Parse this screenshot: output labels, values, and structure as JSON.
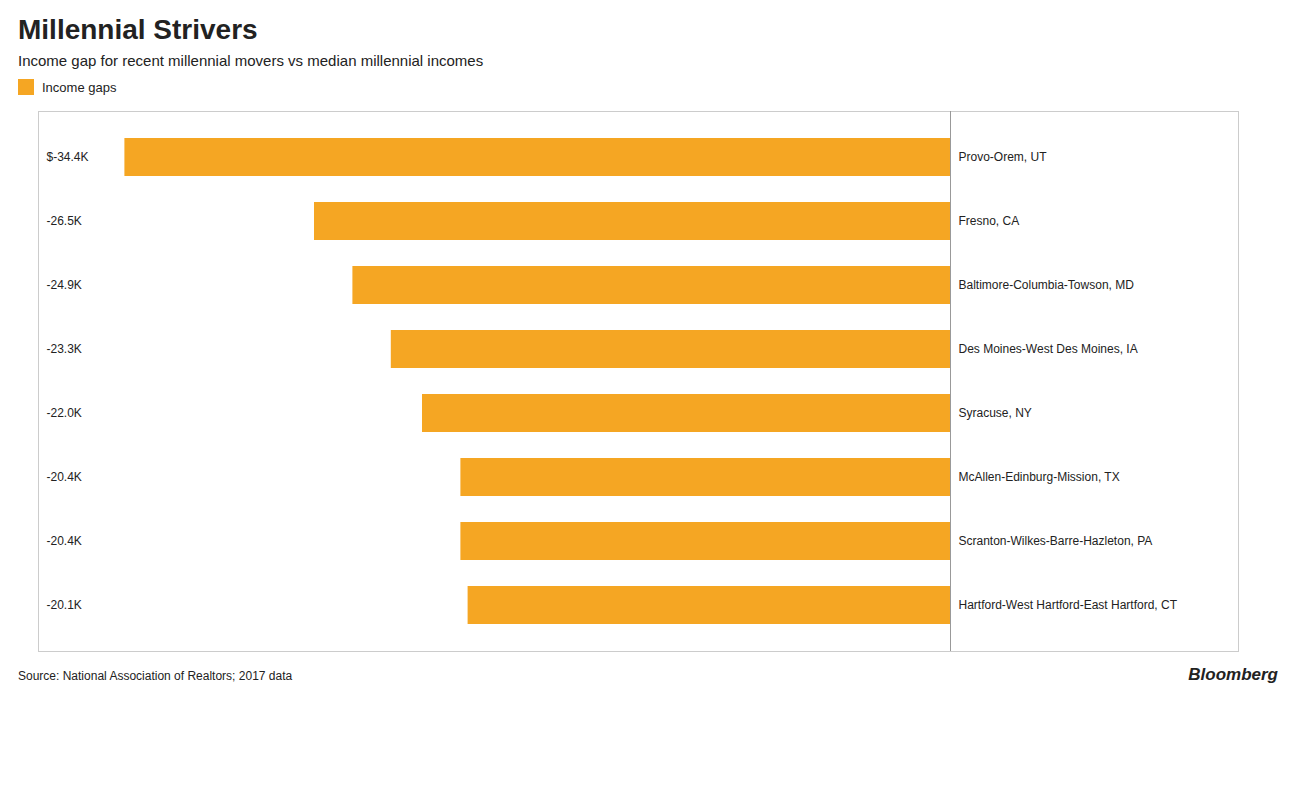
{
  "chart_data": {
    "type": "bar",
    "title": "Millennial Strivers",
    "subtitle": "Income gap for recent millennial movers vs median millennial incomes",
    "categories": [
      "Provo-Orem, UT",
      "Fresno, CA",
      "Baltimore-Columbia-Towson, MD",
      "Des Moines-West Des Moines, IA",
      "Syracuse, NY",
      "McAllen-Edinburg-Mission, TX",
      "Scranton-Wilkes-Barre-Hazleton, PA",
      "Hartford-West Hartford-East Hartford, CT"
    ],
    "series": [
      {
        "name": "Income gaps",
        "color": "#F5A623",
        "values": [
          -34400,
          -26500,
          -24900,
          -23300,
          -22000,
          -20400,
          -20400,
          -20100
        ],
        "value_labels": [
          "$-34.4K",
          "-26.5K",
          "-24.9K",
          "-23.3K",
          "-22.0K",
          "-20.4K",
          "-20.4K",
          "-20.1K"
        ]
      }
    ],
    "xlim": [
      -38000,
      12000
    ],
    "orientation": "horizontal",
    "data_labels": true,
    "tick_labels": false,
    "grid": false,
    "legend": "top-left",
    "annotations": [
      "Source: National Association of Realtors; 2017 data",
      "Bloomberg"
    ]
  }
}
